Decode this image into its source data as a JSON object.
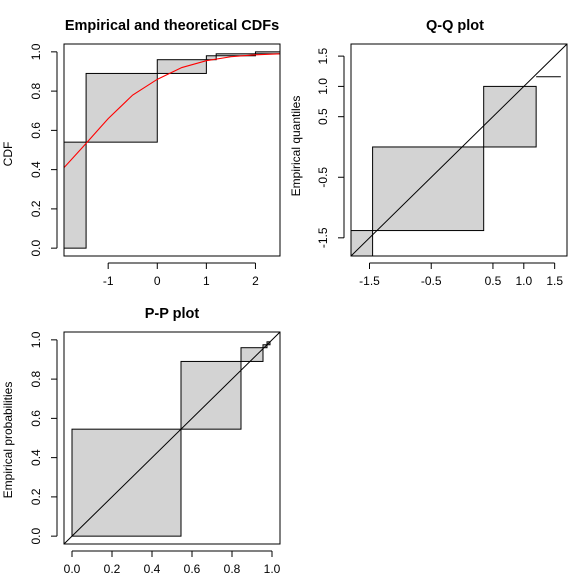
{
  "chart_data": [
    {
      "type": "step-cdf",
      "title": "Empirical and theoretical CDFs",
      "xlabel": "",
      "ylabel": "CDF",
      "xlim": [
        -1.9,
        2.5
      ],
      "ylim": [
        -0.04,
        1.04
      ],
      "x_ticks": [
        -1,
        0,
        1,
        2
      ],
      "x_tick_labels": [
        "-1",
        "0",
        "1",
        "2"
      ],
      "y_ticks": [
        0.0,
        0.2,
        0.4,
        0.6,
        0.8,
        1.0
      ],
      "y_tick_labels": [
        "0.0",
        "0.2",
        "0.4",
        "0.6",
        "0.8",
        "1.0"
      ],
      "ecdf_steps": [
        {
          "x0": -1.9,
          "x1": -1.45,
          "lower": 0.0,
          "upper": 0.54
        },
        {
          "x0": -1.45,
          "x1": 0.0,
          "lower": 0.54,
          "upper": 0.89
        },
        {
          "x0": 0.0,
          "x1": 1.0,
          "lower": 0.89,
          "upper": 0.96
        },
        {
          "x0": 1.0,
          "x1": 1.2,
          "lower": 0.96,
          "upper": 0.98
        },
        {
          "x0": 1.2,
          "x1": 2.0,
          "lower": 0.98,
          "upper": 0.99
        },
        {
          "x0": 2.0,
          "x1": 2.5,
          "lower": 0.99,
          "upper": 1.0
        }
      ],
      "theoretical_cdf": {
        "x": [
          -1.9,
          -1.5,
          -1.0,
          -0.5,
          0.0,
          0.5,
          1.0,
          1.5,
          2.0,
          2.5
        ],
        "y": [
          0.41,
          0.52,
          0.66,
          0.78,
          0.86,
          0.92,
          0.955,
          0.975,
          0.985,
          0.99
        ],
        "color": "#ff0000"
      },
      "fill_color": "#d3d3d3"
    },
    {
      "type": "qq",
      "title": "Q-Q plot",
      "xlabel": "",
      "ylabel": "Empirical quantiles",
      "xlim": [
        -1.8,
        1.7
      ],
      "ylim": [
        -1.8,
        1.7
      ],
      "x_ticks": [
        -1.5,
        -0.5,
        0.5,
        1.0,
        1.5
      ],
      "x_tick_labels": [
        "-1.5",
        "-0.5",
        "0.5",
        "1.0",
        "1.5"
      ],
      "y_ticks": [
        -1.5,
        -0.5,
        0.5,
        1.0,
        1.5
      ],
      "y_tick_labels": [
        "-1.5",
        "-0.5",
        "0.5",
        "1.0",
        "1.5"
      ],
      "rects": [
        {
          "x0": -1.8,
          "x1": -1.45,
          "y0": -1.8,
          "y1": -1.38
        },
        {
          "x0": -1.45,
          "x1": 0.35,
          "y0": -1.38,
          "y1": 0.0
        },
        {
          "x0": 0.35,
          "x1": 1.2,
          "y0": 0.0,
          "y1": 1.0
        }
      ],
      "segments": [
        {
          "x0": 1.2,
          "x1": 1.6,
          "y": 1.16
        }
      ],
      "reference_line": [
        [
          -1.8,
          -1.8
        ],
        [
          1.7,
          1.7
        ]
      ],
      "fill_color": "#d3d3d3"
    },
    {
      "type": "pp",
      "title": "P-P plot",
      "xlabel": "",
      "ylabel": "Empirical probabilities",
      "xlim": [
        -0.04,
        1.04
      ],
      "ylim": [
        -0.04,
        1.04
      ],
      "x_ticks": [
        0.0,
        0.2,
        0.4,
        0.6,
        0.8,
        1.0
      ],
      "x_tick_labels": [
        "0.0",
        "0.2",
        "0.4",
        "0.6",
        "0.8",
        "1.0"
      ],
      "y_ticks": [
        0.0,
        0.2,
        0.4,
        0.6,
        0.8,
        1.0
      ],
      "y_tick_labels": [
        "0.0",
        "0.2",
        "0.4",
        "0.6",
        "0.8",
        "1.0"
      ],
      "rects": [
        {
          "x0": 0.0,
          "x1": 0.545,
          "y0": 0.0,
          "y1": 0.545
        },
        {
          "x0": 0.545,
          "x1": 0.845,
          "y0": 0.545,
          "y1": 0.89
        },
        {
          "x0": 0.845,
          "x1": 0.955,
          "y0": 0.89,
          "y1": 0.96
        },
        {
          "x0": 0.955,
          "x1": 0.975,
          "y0": 0.96,
          "y1": 0.975
        },
        {
          "x0": 0.975,
          "x1": 0.99,
          "y0": 0.975,
          "y1": 0.99
        }
      ],
      "reference_line": [
        [
          -0.04,
          -0.04
        ],
        [
          1.04,
          1.04
        ]
      ],
      "fill_color": "#d3d3d3"
    }
  ]
}
